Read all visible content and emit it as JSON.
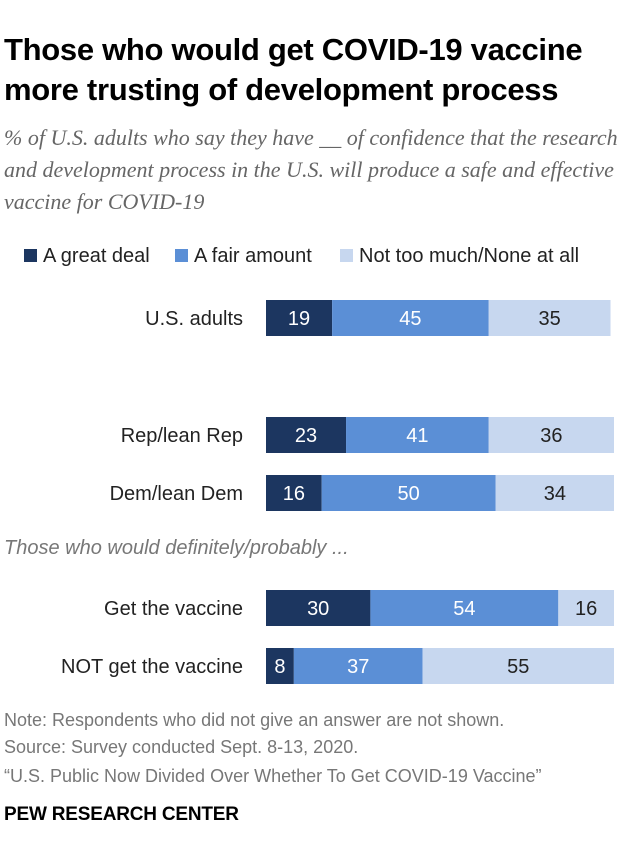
{
  "title": "Those who would get COVID-19 vaccine more trusting of development process",
  "subtitle": "% of U.S. adults who say they have __ of confidence that the research and development process in the U.S. will produce a safe and effective vaccine for COVID-19",
  "legend": [
    "A great deal",
    "A fair amount",
    "Not too much/None at all"
  ],
  "group_intro": "Those who would definitely/probably ...",
  "note": "Note: Respondents who did not give an answer are not shown.",
  "source": "Source: Survey conducted Sept. 8-13, 2020.",
  "report": "“U.S. Public Now Divided Over Whether To Get COVID-19 Vaccine”",
  "brand": "PEW RESEARCH CENTER",
  "colors": {
    "great_deal": "#1c3660",
    "fair_amount": "#5b8fd6",
    "not_too_much": "#c7d7ef"
  },
  "chart_data": {
    "type": "bar",
    "orientation": "horizontal",
    "stacked": true,
    "categories": [
      "U.S. adults",
      "Rep/lean Rep",
      "Dem/lean Dem",
      "Get the vaccine",
      "NOT get the vaccine"
    ],
    "series": [
      {
        "name": "A great deal",
        "values": [
          19,
          23,
          16,
          30,
          8
        ]
      },
      {
        "name": "A fair amount",
        "values": [
          45,
          41,
          50,
          54,
          37
        ]
      },
      {
        "name": "Not too much/None at all",
        "values": [
          35,
          36,
          34,
          16,
          55
        ]
      }
    ],
    "xlim": [
      0,
      100
    ],
    "legend_position": "top",
    "grid": false
  }
}
